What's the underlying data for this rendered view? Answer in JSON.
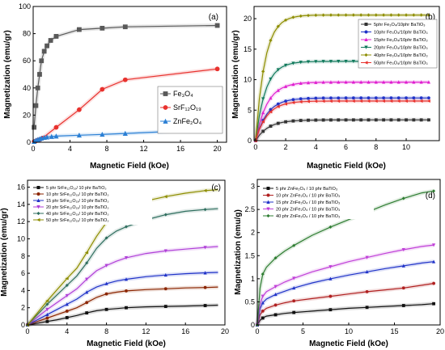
{
  "chart_data": [
    {
      "type": "scatter",
      "panel_label": "(a)",
      "xlabel": "Magnetic Field (kOe)",
      "ylabel": "Magnetization (emu/gr)",
      "xlim": [
        0,
        21
      ],
      "ylim": [
        0,
        100
      ],
      "xticks": [
        0,
        4,
        8,
        12,
        16,
        20
      ],
      "yticks": [
        0,
        20,
        40,
        60,
        80,
        100
      ],
      "legend_position": "center-right",
      "series": [
        {
          "name": "Fe₃O₄",
          "color": "#595959",
          "marker": "square",
          "x": [
            0.1,
            0.3,
            0.5,
            0.7,
            0.9,
            1.2,
            1.5,
            1.9,
            2.5,
            5,
            7.5,
            10,
            20
          ],
          "y": [
            11,
            27,
            40,
            50,
            60,
            67,
            71,
            75,
            78,
            83,
            84,
            85,
            86
          ]
        },
        {
          "name": "SrF₁₂O₁₉",
          "color": "#e8322e",
          "marker": "circle",
          "x": [
            0.1,
            0.3,
            0.5,
            0.7,
            1.0,
            2.5,
            5,
            7.5,
            10,
            20
          ],
          "y": [
            0.5,
            1,
            1.5,
            2,
            3,
            11,
            24,
            39,
            46,
            54
          ]
        },
        {
          "name": "ZnFe₂O₄",
          "color": "#2a7fd4",
          "marker": "triangle",
          "x": [
            0.1,
            0.3,
            0.5,
            0.7,
            0.9,
            1.2,
            1.5,
            2.0,
            2.5,
            5,
            7.5,
            10,
            20
          ],
          "y": [
            0.5,
            1.5,
            2,
            2.5,
            3,
            3.5,
            3.8,
            4.2,
            4.5,
            5.2,
            5.8,
            6.5,
            9.5
          ]
        }
      ]
    },
    {
      "type": "line",
      "panel_label": "(b)",
      "xlabel": "Magnetic Field (kOe)",
      "ylabel": "Magnetization (emu/gr)",
      "xlim": [
        -0.1,
        12.2
      ],
      "ylim": [
        0,
        22
      ],
      "xticks": [
        0,
        2,
        4,
        6,
        8,
        10
      ],
      "yticks": [
        0,
        5,
        10,
        15,
        20
      ],
      "legend_position": "center-right",
      "series": [
        {
          "name": "5phr Fe₃O₄/10phr BaTiO₃",
          "color": "#333333",
          "marker": "square",
          "saturation": 3.4,
          "k": 1.2
        },
        {
          "name": "10phr Fe₃O₄/10phr BaTiO₃",
          "color": "#2033c8",
          "marker": "circle",
          "saturation": 7.0,
          "k": 1.3
        },
        {
          "name": "15phr Fe₃O₄/10phr BaTiO₃",
          "color": "#e020d0",
          "marker": "triangle",
          "saturation": 9.6,
          "k": 1.3
        },
        {
          "name": "20phr Fe₃O₄/10phr BaTiO₃",
          "color": "#117a5c",
          "marker": "triangle-down",
          "saturation": 13.0,
          "k": 1.5
        },
        {
          "name": "40phr Fe₃O₄/10phr BaTiO₃",
          "color": "#8d8d00",
          "marker": "diamond",
          "saturation": 20.6,
          "k": 1.6
        },
        {
          "name": "50phr Fe₃O₄/10phr BaTiO₃",
          "color": "#e8322e",
          "marker": "triangle-left",
          "saturation": 6.5,
          "k": 1.3
        }
      ]
    },
    {
      "type": "line",
      "panel_label": "(c)",
      "xlabel": "Magnetic Field (kOe)",
      "ylabel": "Magnetization (emu/gr)",
      "xlim": [
        0,
        20
      ],
      "ylim": [
        0,
        16.8
      ],
      "xticks": [
        0,
        4,
        8,
        12,
        16,
        20
      ],
      "yticks": [
        0,
        2,
        4,
        6,
        8,
        10,
        12,
        14,
        16
      ],
      "legend_position": "top-left",
      "series": [
        {
          "name": "5 phr SrFe₁₂O₁₉/ 10 phr BaTiO₃",
          "color": "#111111",
          "marker": "square",
          "x": [
            0,
            1,
            2,
            3,
            4,
            5,
            6,
            7,
            8,
            9,
            10,
            12,
            14,
            16,
            18,
            19.3
          ],
          "y": [
            0,
            0.2,
            0.4,
            0.6,
            0.85,
            1.1,
            1.4,
            1.65,
            1.8,
            1.9,
            2.0,
            2.1,
            2.15,
            2.2,
            2.25,
            2.3
          ]
        },
        {
          "name": "10 phr SrFe₁₂O₁₉/ 10 phr BaTiO₃",
          "color": "#8b2500",
          "marker": "circle",
          "x": [
            0,
            1,
            2,
            3,
            4,
            5,
            6,
            7,
            8,
            9,
            10,
            12,
            14,
            16,
            18,
            19.3
          ],
          "y": [
            0,
            0.4,
            0.8,
            1.2,
            1.6,
            2.0,
            2.6,
            3.2,
            3.6,
            3.8,
            3.95,
            4.1,
            4.2,
            4.3,
            4.35,
            4.4
          ]
        },
        {
          "name": "15 phr SrFe₁₂O₁₉/ 10 phr BaTiO₃",
          "color": "#2033c8",
          "marker": "triangle",
          "x": [
            0,
            1,
            2,
            3,
            4,
            5,
            6,
            7,
            8,
            9,
            10,
            12,
            14,
            16,
            18,
            19.3
          ],
          "y": [
            0,
            0.6,
            1.2,
            1.8,
            2.4,
            3.0,
            3.8,
            4.4,
            4.8,
            5.1,
            5.3,
            5.6,
            5.8,
            5.95,
            6.05,
            6.1
          ]
        },
        {
          "name": "20 phr SrFe₁₂O₁₉/ 10 phr BaTiO₃",
          "color": "#b040d8",
          "marker": "triangle-down",
          "x": [
            0,
            1,
            2,
            3,
            4,
            5,
            6,
            7,
            8,
            9,
            10,
            12,
            14,
            16,
            18,
            19.3
          ],
          "y": [
            0,
            0.9,
            1.8,
            2.6,
            3.4,
            4.2,
            5.3,
            6.3,
            6.9,
            7.4,
            7.8,
            8.3,
            8.6,
            8.8,
            9.0,
            9.1
          ]
        },
        {
          "name": "40 phr SrFe₁₂O₁₉/ 10 phr BaTiO₃",
          "color": "#2e6e5e",
          "marker": "diamond",
          "x": [
            0,
            1,
            2,
            3,
            4,
            5,
            6,
            7,
            8,
            9,
            10,
            12,
            14,
            16,
            18,
            19.3
          ],
          "y": [
            0,
            1.2,
            2.4,
            3.5,
            4.6,
            5.7,
            7.2,
            8.9,
            10.1,
            10.9,
            11.4,
            12.2,
            12.8,
            13.2,
            13.4,
            13.5
          ]
        },
        {
          "name": "50 phr SrFe₁₂O₁₉/ 10 phr BaTiO₃",
          "color": "#8d8d00",
          "marker": "triangle-left",
          "x": [
            0,
            1,
            2,
            3,
            4,
            5,
            6,
            7,
            8,
            9,
            10,
            12,
            14,
            16,
            18,
            19.3
          ],
          "y": [
            0,
            1.4,
            2.8,
            4.1,
            5.4,
            6.6,
            8.4,
            10.3,
            11.9,
            12.9,
            13.6,
            14.4,
            14.9,
            15.3,
            15.6,
            15.7
          ]
        }
      ]
    },
    {
      "type": "line",
      "panel_label": "(d)",
      "xlabel": "Magnetic Field (kOe)",
      "ylabel": "Magnetization (emu/g)",
      "xlim": [
        0,
        20
      ],
      "ylim": [
        0,
        3.15
      ],
      "xticks": [
        0,
        5,
        10,
        15,
        20
      ],
      "yticks": [
        0,
        0.5,
        1.0,
        1.5,
        2.0,
        2.5,
        3.0
      ],
      "legend_position": "top-left",
      "series": [
        {
          "name": "5 phr ZnFe₂O₄ / 10 phr BaTiO₃",
          "color": "#111111",
          "marker": "square",
          "x": [
            0,
            0.3,
            0.6,
            1,
            2,
            3,
            4,
            6,
            8,
            10,
            12,
            14,
            16,
            18,
            19.3
          ],
          "y": [
            0,
            0.1,
            0.15,
            0.19,
            0.22,
            0.25,
            0.27,
            0.3,
            0.33,
            0.36,
            0.38,
            0.4,
            0.42,
            0.44,
            0.46
          ]
        },
        {
          "name": "10 phr ZnFe₂O₄ / 10 phr BaTiO₃",
          "color": "#b02020",
          "marker": "circle",
          "x": [
            0,
            0.3,
            0.6,
            1,
            2,
            3,
            4,
            6,
            8,
            10,
            12,
            14,
            16,
            18,
            19.3
          ],
          "y": [
            0,
            0.22,
            0.3,
            0.36,
            0.43,
            0.48,
            0.52,
            0.57,
            0.62,
            0.67,
            0.72,
            0.76,
            0.8,
            0.86,
            0.9
          ]
        },
        {
          "name": "15 phr ZnFe₂O₄ / 10 phr BaTiO₃",
          "color": "#2033c8",
          "marker": "triangle",
          "x": [
            0,
            0.3,
            0.6,
            1,
            2,
            3,
            4,
            6,
            8,
            10,
            12,
            14,
            16,
            18,
            19.3
          ],
          "y": [
            0,
            0.35,
            0.48,
            0.56,
            0.66,
            0.73,
            0.8,
            0.91,
            1.0,
            1.08,
            1.15,
            1.22,
            1.28,
            1.34,
            1.37
          ]
        },
        {
          "name": "20 phr ZnFe₂O₄ / 10 phr BaTiO₃",
          "color": "#c040d8",
          "marker": "triangle-down",
          "x": [
            0,
            0.3,
            0.6,
            1,
            2,
            3,
            4,
            6,
            8,
            10,
            12,
            14,
            16,
            18,
            19.3
          ],
          "y": [
            0,
            0.45,
            0.62,
            0.72,
            0.83,
            0.93,
            1.01,
            1.15,
            1.26,
            1.37,
            1.46,
            1.55,
            1.63,
            1.7,
            1.73
          ]
        },
        {
          "name": "40 phr ZnFe₂O₄ / 10 phr BaTiO₃",
          "color": "#2e7d32",
          "marker": "diamond",
          "x": [
            0,
            0.3,
            0.6,
            1,
            2,
            3,
            4,
            6,
            8,
            10,
            12,
            14,
            16,
            18,
            19.3
          ],
          "y": [
            0,
            0.8,
            1.1,
            1.25,
            1.45,
            1.6,
            1.72,
            1.94,
            2.12,
            2.28,
            2.44,
            2.6,
            2.74,
            2.86,
            2.9
          ]
        }
      ]
    }
  ]
}
